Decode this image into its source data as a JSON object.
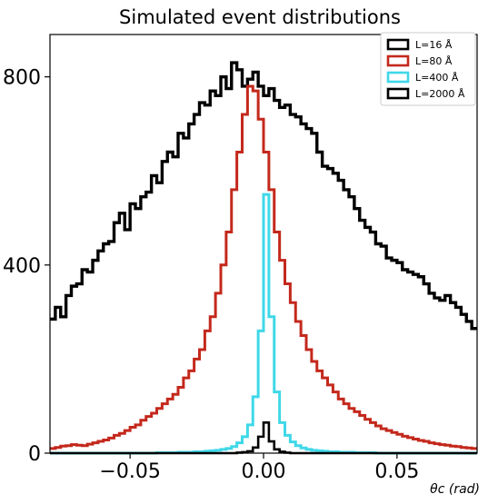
{
  "chart_data": {
    "type": "line",
    "title": "Simulated event distributions",
    "xlabel": "θc (rad)",
    "ylabel": "",
    "xlim": [
      -0.08,
      0.08
    ],
    "ylim": [
      0,
      890
    ],
    "xticks": [
      -0.05,
      0.0,
      0.05
    ],
    "xtick_labels": [
      "−0.05",
      "0.00",
      "0.05"
    ],
    "yticks": [
      0,
      400,
      800
    ],
    "ytick_labels": [
      "0",
      "400",
      "800"
    ],
    "grid": false,
    "legend_position": "top-right",
    "bin_edges_start": -0.08,
    "bin_width": 0.002,
    "series": [
      {
        "name": "L=16 Å",
        "color": "#000000",
        "values": [
          285,
          310,
          290,
          335,
          355,
          360,
          390,
          385,
          410,
          430,
          445,
          450,
          490,
          510,
          475,
          530,
          520,
          545,
          555,
          590,
          575,
          620,
          640,
          630,
          680,
          670,
          700,
          720,
          745,
          740,
          770,
          760,
          800,
          775,
          830,
          815,
          780,
          795,
          810,
          780,
          760,
          775,
          750,
          735,
          740,
          720,
          715,
          700,
          690,
          680,
          640,
          610,
          605,
          595,
          580,
          560,
          545,
          520,
          495,
          480,
          470,
          445,
          440,
          415,
          410,
          405,
          390,
          385,
          380,
          375,
          360,
          340,
          330,
          325,
          335,
          320,
          310,
          295,
          280,
          265
        ]
      },
      {
        "name": "L=80 Å",
        "color": "#c4281c",
        "values": [
          10,
          12,
          15,
          16,
          18,
          17,
          16,
          19,
          22,
          25,
          28,
          32,
          38,
          42,
          48,
          55,
          60,
          70,
          78,
          85,
          95,
          105,
          115,
          125,
          140,
          160,
          175,
          200,
          220,
          260,
          290,
          340,
          400,
          470,
          560,
          640,
          720,
          780,
          770,
          710,
          640,
          560,
          470,
          410,
          360,
          320,
          280,
          250,
          220,
          195,
          175,
          160,
          145,
          130,
          115,
          105,
          95,
          88,
          80,
          72,
          65,
          58,
          52,
          48,
          44,
          40,
          36,
          33,
          30,
          27,
          25,
          22,
          20,
          18,
          17,
          15,
          14,
          12,
          11,
          10
        ]
      },
      {
        "name": "L=400 Å",
        "color": "#3fd8e8",
        "values": [
          0,
          0,
          0,
          0,
          0,
          0,
          0,
          0,
          0,
          0,
          0,
          0,
          0,
          0,
          0,
          0,
          0,
          0,
          0,
          0,
          1,
          1,
          1,
          1,
          2,
          2,
          2,
          3,
          3,
          4,
          5,
          6,
          8,
          10,
          14,
          22,
          35,
          60,
          120,
          260,
          550,
          290,
          130,
          65,
          38,
          24,
          16,
          11,
          8,
          6,
          5,
          4,
          3,
          3,
          2,
          2,
          2,
          1,
          1,
          1,
          1,
          0,
          0,
          0,
          0,
          0,
          0,
          0,
          0,
          0,
          0,
          0,
          0,
          0,
          0,
          0,
          0,
          0,
          0,
          0
        ]
      },
      {
        "name": "L=2000 Å",
        "color": "#000000",
        "values": [
          0,
          0,
          0,
          0,
          0,
          0,
          0,
          0,
          0,
          0,
          0,
          0,
          0,
          0,
          0,
          0,
          0,
          0,
          0,
          0,
          0,
          0,
          0,
          0,
          0,
          0,
          0,
          0,
          0,
          0,
          0,
          0,
          0,
          0,
          0,
          1,
          2,
          4,
          12,
          35,
          65,
          25,
          8,
          3,
          1,
          0,
          0,
          0,
          0,
          0,
          0,
          0,
          0,
          0,
          0,
          0,
          0,
          0,
          0,
          0,
          0,
          0,
          0,
          0,
          0,
          0,
          0,
          0,
          0,
          0,
          0,
          0,
          0,
          0,
          0,
          0,
          0,
          0,
          0,
          0
        ]
      }
    ]
  }
}
